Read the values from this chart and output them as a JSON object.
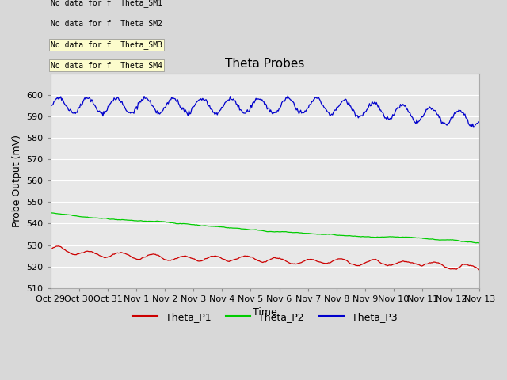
{
  "title": "Theta Probes",
  "xlabel": "Time",
  "ylabel": "Probe Output (mV)",
  "ylim": [
    510,
    610
  ],
  "yticks": [
    510,
    520,
    530,
    540,
    550,
    560,
    570,
    580,
    590,
    600
  ],
  "fig_bg_color": "#d8d8d8",
  "plot_bg_color": "#e8e8e8",
  "grid_color": "#ffffff",
  "colors": {
    "P1": "#cc0000",
    "P2": "#00cc00",
    "P3": "#0000cc"
  },
  "x_tick_labels": [
    "Oct 29",
    "Oct 30",
    "Oct 31",
    "Nov 1",
    "Nov 2",
    "Nov 3",
    "Nov 4",
    "Nov 5",
    "Nov 6",
    "Nov 7",
    "Nov 8",
    "Nov 9",
    "Nov 10",
    "Nov 11",
    "Nov 12",
    "Nov 13"
  ],
  "num_points": 500,
  "annotations": [
    "No data for f  Theta_SM1",
    "No data for f  Theta_SM2",
    "No data for f  Theta_SM3",
    "No data for f  Theta_SM4"
  ]
}
